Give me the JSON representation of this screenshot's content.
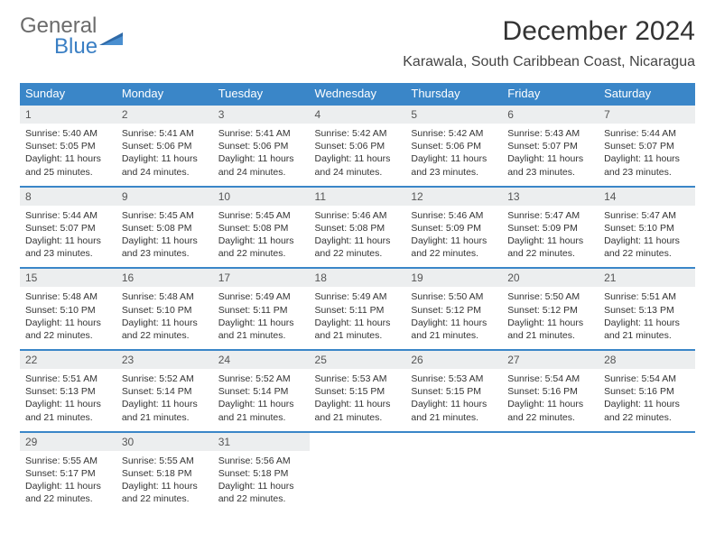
{
  "logo": {
    "word1": "General",
    "word2": "Blue"
  },
  "title": "December 2024",
  "location": "Karawala, South Caribbean Coast, Nicaragua",
  "colors": {
    "header_bg": "#3a86c8",
    "header_fg": "#ffffff",
    "daynum_bg": "#eceeef",
    "border": "#3a86c8",
    "text": "#333333"
  },
  "day_names": [
    "Sunday",
    "Monday",
    "Tuesday",
    "Wednesday",
    "Thursday",
    "Friday",
    "Saturday"
  ],
  "weeks": [
    [
      {
        "n": "1",
        "sr": "5:40 AM",
        "ss": "5:05 PM",
        "dl": "11 hours and 25 minutes."
      },
      {
        "n": "2",
        "sr": "5:41 AM",
        "ss": "5:06 PM",
        "dl": "11 hours and 24 minutes."
      },
      {
        "n": "3",
        "sr": "5:41 AM",
        "ss": "5:06 PM",
        "dl": "11 hours and 24 minutes."
      },
      {
        "n": "4",
        "sr": "5:42 AM",
        "ss": "5:06 PM",
        "dl": "11 hours and 24 minutes."
      },
      {
        "n": "5",
        "sr": "5:42 AM",
        "ss": "5:06 PM",
        "dl": "11 hours and 23 minutes."
      },
      {
        "n": "6",
        "sr": "5:43 AM",
        "ss": "5:07 PM",
        "dl": "11 hours and 23 minutes."
      },
      {
        "n": "7",
        "sr": "5:44 AM",
        "ss": "5:07 PM",
        "dl": "11 hours and 23 minutes."
      }
    ],
    [
      {
        "n": "8",
        "sr": "5:44 AM",
        "ss": "5:07 PM",
        "dl": "11 hours and 23 minutes."
      },
      {
        "n": "9",
        "sr": "5:45 AM",
        "ss": "5:08 PM",
        "dl": "11 hours and 23 minutes."
      },
      {
        "n": "10",
        "sr": "5:45 AM",
        "ss": "5:08 PM",
        "dl": "11 hours and 22 minutes."
      },
      {
        "n": "11",
        "sr": "5:46 AM",
        "ss": "5:08 PM",
        "dl": "11 hours and 22 minutes."
      },
      {
        "n": "12",
        "sr": "5:46 AM",
        "ss": "5:09 PM",
        "dl": "11 hours and 22 minutes."
      },
      {
        "n": "13",
        "sr": "5:47 AM",
        "ss": "5:09 PM",
        "dl": "11 hours and 22 minutes."
      },
      {
        "n": "14",
        "sr": "5:47 AM",
        "ss": "5:10 PM",
        "dl": "11 hours and 22 minutes."
      }
    ],
    [
      {
        "n": "15",
        "sr": "5:48 AM",
        "ss": "5:10 PM",
        "dl": "11 hours and 22 minutes."
      },
      {
        "n": "16",
        "sr": "5:48 AM",
        "ss": "5:10 PM",
        "dl": "11 hours and 22 minutes."
      },
      {
        "n": "17",
        "sr": "5:49 AM",
        "ss": "5:11 PM",
        "dl": "11 hours and 21 minutes."
      },
      {
        "n": "18",
        "sr": "5:49 AM",
        "ss": "5:11 PM",
        "dl": "11 hours and 21 minutes."
      },
      {
        "n": "19",
        "sr": "5:50 AM",
        "ss": "5:12 PM",
        "dl": "11 hours and 21 minutes."
      },
      {
        "n": "20",
        "sr": "5:50 AM",
        "ss": "5:12 PM",
        "dl": "11 hours and 21 minutes."
      },
      {
        "n": "21",
        "sr": "5:51 AM",
        "ss": "5:13 PM",
        "dl": "11 hours and 21 minutes."
      }
    ],
    [
      {
        "n": "22",
        "sr": "5:51 AM",
        "ss": "5:13 PM",
        "dl": "11 hours and 21 minutes."
      },
      {
        "n": "23",
        "sr": "5:52 AM",
        "ss": "5:14 PM",
        "dl": "11 hours and 21 minutes."
      },
      {
        "n": "24",
        "sr": "5:52 AM",
        "ss": "5:14 PM",
        "dl": "11 hours and 21 minutes."
      },
      {
        "n": "25",
        "sr": "5:53 AM",
        "ss": "5:15 PM",
        "dl": "11 hours and 21 minutes."
      },
      {
        "n": "26",
        "sr": "5:53 AM",
        "ss": "5:15 PM",
        "dl": "11 hours and 21 minutes."
      },
      {
        "n": "27",
        "sr": "5:54 AM",
        "ss": "5:16 PM",
        "dl": "11 hours and 22 minutes."
      },
      {
        "n": "28",
        "sr": "5:54 AM",
        "ss": "5:16 PM",
        "dl": "11 hours and 22 minutes."
      }
    ],
    [
      {
        "n": "29",
        "sr": "5:55 AM",
        "ss": "5:17 PM",
        "dl": "11 hours and 22 minutes."
      },
      {
        "n": "30",
        "sr": "5:55 AM",
        "ss": "5:18 PM",
        "dl": "11 hours and 22 minutes."
      },
      {
        "n": "31",
        "sr": "5:56 AM",
        "ss": "5:18 PM",
        "dl": "11 hours and 22 minutes."
      },
      null,
      null,
      null,
      null
    ]
  ],
  "labels": {
    "sunrise": "Sunrise:",
    "sunset": "Sunset:",
    "daylight": "Daylight:"
  }
}
